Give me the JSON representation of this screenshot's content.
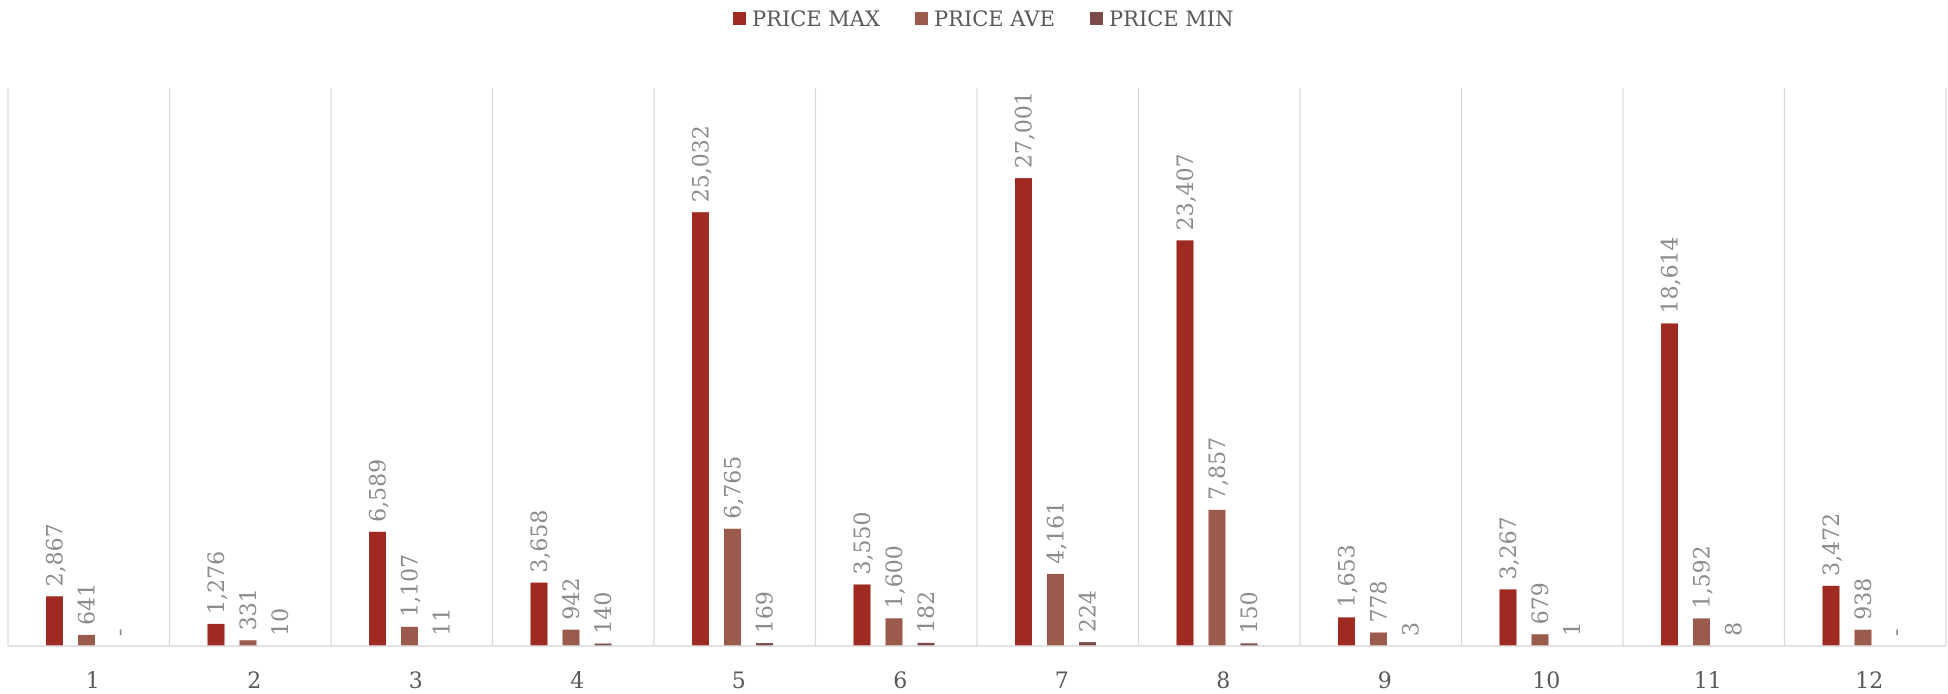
{
  "chart_data": {
    "type": "bar",
    "title": "",
    "xlabel": "",
    "ylabel": "",
    "categories": [
      "1",
      "2",
      "3",
      "4",
      "5",
      "6",
      "7",
      "8",
      "9",
      "10",
      "11",
      "12"
    ],
    "series": [
      {
        "name": "PRICE MAX",
        "color": "#9e2a22",
        "values": [
          2867,
          1276,
          6589,
          3658,
          25032,
          3550,
          27001,
          23407,
          1653,
          3267,
          18614,
          3472
        ],
        "labels": [
          "2,867",
          "1,276",
          "6,589",
          "3,658",
          "25,032",
          "3,550",
          "27,001",
          "23,407",
          "1,653",
          "3,267",
          "18,614",
          "3,472"
        ]
      },
      {
        "name": "PRICE AVE",
        "color": "#9a5b4d",
        "values": [
          641,
          331,
          1107,
          942,
          6765,
          1600,
          4161,
          7857,
          778,
          679,
          1592,
          938
        ],
        "labels": [
          "641",
          "331",
          "1,107",
          "942",
          "6,765",
          "1,600",
          "4,161",
          "7,857",
          "778",
          "679",
          "1,592",
          "938"
        ]
      },
      {
        "name": "PRICE MIN",
        "color": "#7b4a49",
        "values": [
          0,
          10,
          11,
          140,
          169,
          182,
          224,
          150,
          3,
          1,
          8,
          0
        ],
        "labels": [
          "-",
          "10",
          "11",
          "140",
          "169",
          "182",
          "224",
          "150",
          "3",
          "1",
          "8",
          "-"
        ]
      }
    ],
    "ylim": [
      0,
      30000
    ],
    "legend_position": "top-center",
    "grid": "vertical category separators",
    "data_labels": "rotated vertical above bars"
  }
}
